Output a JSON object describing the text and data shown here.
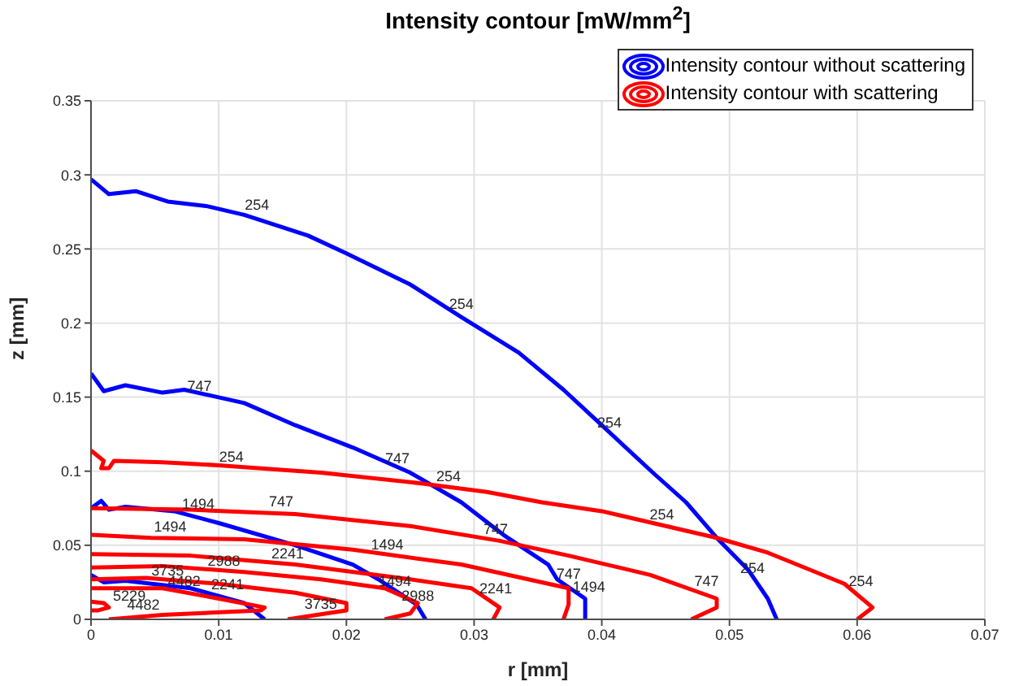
{
  "chart_data": {
    "type": "line",
    "title": "Intensity contour [mW/mm$^{2}$]",
    "xlabel": "r [mm]",
    "ylabel": "z [mm]",
    "xlim": [
      0,
      0.07
    ],
    "xticks": [
      0,
      0.01,
      0.02,
      0.03,
      0.04,
      0.05,
      0.06,
      0.07
    ],
    "ylim": [
      0,
      0.35
    ],
    "yticks": [
      0,
      0.05,
      0.1,
      0.15,
      0.2,
      0.25,
      0.3,
      0.35
    ],
    "grid": true,
    "legend": "top right",
    "marker": "none",
    "line_style": "solid",
    "series": [
      {
        "name": "Intensity contour without scattering",
        "color": "#0000ff",
        "x": [
          0,
          0.0014,
          0.0035,
          0.006,
          0.009,
          0.012,
          0.017,
          0.02,
          0.025,
          0.029,
          0.0335,
          0.037,
          0.04,
          0.044,
          0.0466,
          0.049,
          0.0515,
          0.053,
          0.0537,
          null,
          0,
          0.001,
          0.0027,
          0.0056,
          0.0073,
          0.012,
          0.016,
          0.0205,
          0.025,
          0.029,
          0.0323,
          0.0358,
          0.0365,
          0.0387,
          0.0387,
          null,
          0,
          0.0008,
          0.0014,
          0.0027,
          0.0065,
          0.01,
          0.016,
          0.0205,
          0.0225,
          0.0255,
          0.0262,
          null,
          0,
          0.001,
          0.0027,
          0.0078,
          0.012,
          0.0136
        ],
        "values": [
          0.297,
          0.287,
          0.289,
          0.282,
          0.279,
          0.273,
          0.259,
          0.247,
          0.226,
          0.204,
          0.18,
          0.155,
          0.131,
          0.099,
          0.079,
          0.055,
          0.033,
          0.014,
          0,
          null,
          0.166,
          0.154,
          0.158,
          0.153,
          0.155,
          0.146,
          0.131,
          0.116,
          0.099,
          0.079,
          0.057,
          0.037,
          0.027,
          0.014,
          0,
          null,
          0.075,
          0.08,
          0.074,
          0.076,
          0.073,
          0.065,
          0.05,
          0.037,
          0.027,
          0.01,
          0,
          null,
          0.03,
          0.025,
          0.026,
          0.021,
          0.011,
          0
        ]
      },
      {
        "name": "Intensity contour with scattering",
        "color": "#ff0000",
        "x": [
          0,
          0.001,
          0.0008,
          0.0014,
          0.0018,
          0.0056,
          0.01,
          0.018,
          0.0256,
          0.031,
          0.0353,
          0.04,
          0.044,
          0.049,
          0.053,
          0.059,
          0.0612,
          0.06,
          null,
          0,
          0.0078,
          0.016,
          0.025,
          0.032,
          0.0374,
          0.0438,
          0.049,
          0.049,
          0.047,
          null,
          0,
          0.0047,
          0.012,
          0.0205,
          0.029,
          0.0374,
          0.0374,
          0.037,
          null,
          0,
          0.0078,
          0.016,
          0.025,
          0.0298,
          0.032,
          0.0315,
          null,
          0,
          0.0056,
          0.012,
          0.018,
          0.023,
          0.0256,
          0.025,
          0.023,
          null,
          0,
          0.0043,
          0.01,
          0.016,
          0.02,
          0.02,
          0.0154,
          null,
          0,
          0.0056,
          0.01,
          0.0136,
          0.0133,
          0.0056,
          0.0014,
          null,
          0,
          0.001,
          0.0014,
          0.0005,
          0
        ],
        "values": [
          0.114,
          0.107,
          0.102,
          0.102,
          0.107,
          0.106,
          0.104,
          0.099,
          0.092,
          0.086,
          0.079,
          0.073,
          0.065,
          0.055,
          0.045,
          0.024,
          0.008,
          0,
          null,
          0.075,
          0.074,
          0.071,
          0.063,
          0.053,
          0.043,
          0.03,
          0.014,
          0.008,
          0,
          null,
          0.057,
          0.055,
          0.054,
          0.047,
          0.037,
          0.021,
          0.01,
          0,
          null,
          0.044,
          0.043,
          0.037,
          0.027,
          0.021,
          0.008,
          0,
          null,
          0.035,
          0.036,
          0.032,
          0.027,
          0.021,
          0.011,
          0.004,
          0,
          null,
          0.027,
          0.028,
          0.024,
          0.018,
          0.011,
          0.006,
          0,
          null,
          0.021,
          0.021,
          0.014,
          0.008,
          0.006,
          0.003,
          0,
          null,
          0.012,
          0.011,
          0.008,
          0.006,
          0.006
        ]
      }
    ],
    "annotations": [
      {
        "text": "254",
        "x": 0.013,
        "y": 0.272
      },
      {
        "text": "254",
        "x": 0.029,
        "y": 0.205
      },
      {
        "text": "254",
        "x": 0.0406,
        "y": 0.125
      },
      {
        "text": "254",
        "x": 0.0518,
        "y": 0.027
      },
      {
        "text": "747",
        "x": 0.0085,
        "y": 0.15
      },
      {
        "text": "747",
        "x": 0.024,
        "y": 0.101
      },
      {
        "text": "747",
        "x": 0.0374,
        "y": 0.023
      },
      {
        "text": "1494",
        "x": 0.0084,
        "y": 0.07
      },
      {
        "text": "1494",
        "x": 0.0238,
        "y": 0.018
      },
      {
        "text": "1494",
        "x": 0.039,
        "y": 0.014
      },
      {
        "text": "2988",
        "x": 0.0256,
        "y": 0.008
      },
      {
        "text": "254",
        "x": 0.011,
        "y": 0.102
      },
      {
        "text": "254",
        "x": 0.028,
        "y": 0.089
      },
      {
        "text": "254",
        "x": 0.0447,
        "y": 0.063
      },
      {
        "text": "254",
        "x": 0.0603,
        "y": 0.018
      },
      {
        "text": "747",
        "x": 0.0149,
        "y": 0.072
      },
      {
        "text": "747",
        "x": 0.0317,
        "y": 0.053
      },
      {
        "text": "747",
        "x": 0.0482,
        "y": 0.018
      },
      {
        "text": "1494",
        "x": 0.0062,
        "y": 0.055
      },
      {
        "text": "1494",
        "x": 0.0232,
        "y": 0.043
      },
      {
        "text": "2241",
        "x": 0.0154,
        "y": 0.037
      },
      {
        "text": "2241",
        "x": 0.0107,
        "y": 0.016
      },
      {
        "text": "2241",
        "x": 0.0317,
        "y": 0.013
      },
      {
        "text": "2988",
        "x": 0.0104,
        "y": 0.032
      },
      {
        "text": "3735",
        "x": 0.006,
        "y": 0.025
      },
      {
        "text": "3735",
        "x": 0.018,
        "y": 0.003
      },
      {
        "text": "4482",
        "x": 0.0073,
        "y": 0.018
      },
      {
        "text": "4482",
        "x": 0.0041,
        "y": 0.002
      },
      {
        "text": "5229",
        "x": 0.003,
        "y": 0.008
      }
    ]
  }
}
